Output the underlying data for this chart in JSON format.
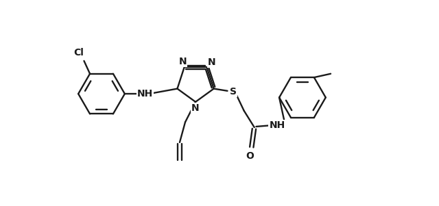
{
  "bg_color": "#ffffff",
  "line_color": "#1a1a1a",
  "lw": 1.7,
  "figsize": [
    6.4,
    3.01
  ],
  "dpi": 100,
  "xlim": [
    -0.5,
    10.5
  ],
  "ylim": [
    -0.3,
    5.3
  ]
}
